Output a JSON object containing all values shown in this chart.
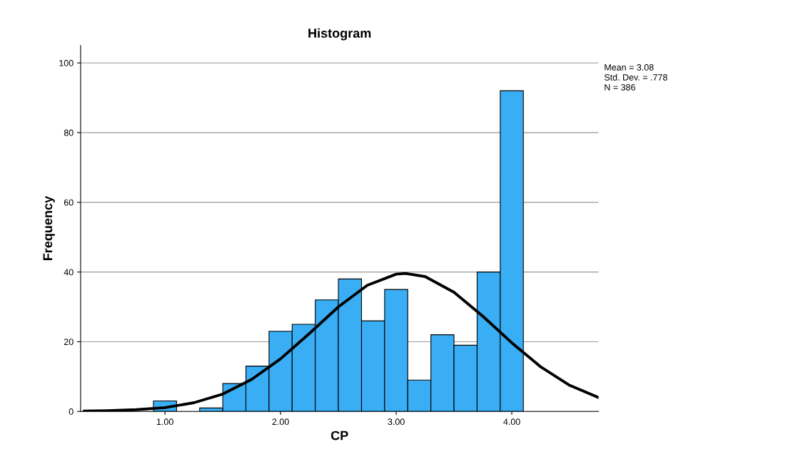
{
  "chart_data": {
    "type": "histogram",
    "title": "Histogram",
    "xlabel": "CP",
    "ylabel": "Frequency",
    "xlim": [
      0.27,
      4.75
    ],
    "ylim": [
      0,
      105
    ],
    "xticks": [
      {
        "value": 1,
        "label": "1.00"
      },
      {
        "value": 2,
        "label": "2.00"
      },
      {
        "value": 3,
        "label": "3.00"
      },
      {
        "value": 4,
        "label": "4.00"
      }
    ],
    "yticks": [
      0,
      20,
      40,
      60,
      80,
      100
    ],
    "grid": "y",
    "legend": false,
    "series": [
      {
        "color": "#3aaef5",
        "bins": [
          0.9,
          1.1,
          1.3,
          1.5,
          1.7,
          1.9,
          2.1,
          2.3,
          2.5,
          2.7,
          2.9,
          3.1,
          3.3,
          3.5,
          3.7,
          3.9,
          4.1
        ],
        "values": [
          3,
          0,
          1,
          8,
          13,
          23,
          25,
          32,
          38,
          26,
          35,
          9,
          22,
          19,
          40,
          92
        ]
      },
      {
        "type": "line",
        "color": "#000000",
        "x": [
          0.3,
          0.5,
          0.75,
          1.0,
          1.25,
          1.5,
          1.75,
          2.0,
          2.25,
          2.5,
          2.75,
          3.0,
          3.08,
          3.25,
          3.5,
          3.75,
          4.0,
          4.25,
          4.5,
          4.75
        ],
        "values": [
          0.1,
          0.2,
          0.5,
          1.1,
          2.5,
          5.0,
          9.2,
          15.1,
          22.4,
          30.0,
          36.2,
          39.4,
          39.6,
          38.7,
          34.2,
          27.3,
          19.7,
          12.8,
          7.5,
          4.0
        ]
      }
    ],
    "annotations": [
      "Mean = 3.08",
      "Std. Dev. = .778",
      "N = 386"
    ]
  }
}
